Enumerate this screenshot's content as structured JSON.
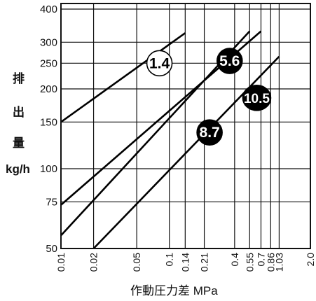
{
  "chart_data": {
    "type": "line",
    "title": "",
    "ylabel_chars": [
      "排",
      "出",
      "量"
    ],
    "yunit": "kg/h",
    "xlabel": "作動圧力差 MPa",
    "x_scale": "log",
    "y_scale": "log",
    "xlim": [
      0.01,
      2.0
    ],
    "ylim": [
      50,
      420
    ],
    "y_ticks": [
      {
        "value": 400,
        "label": "400"
      },
      {
        "value": 300,
        "label": "300"
      },
      {
        "value": 250,
        "label": "250"
      },
      {
        "value": 200,
        "label": "200"
      },
      {
        "value": 150,
        "label": "150"
      },
      {
        "value": 100,
        "label": "100"
      },
      {
        "value": 75,
        "label": "75"
      },
      {
        "value": 50,
        "label": "50"
      }
    ],
    "x_ticks": [
      {
        "value": 0.01,
        "label": "0.01"
      },
      {
        "value": 0.02,
        "label": "0.02"
      },
      {
        "value": 0.05,
        "label": "0.05"
      },
      {
        "value": 0.1,
        "label": "0.1"
      },
      {
        "value": 0.14,
        "label": "0.14"
      },
      {
        "value": 0.21,
        "label": "0.21"
      },
      {
        "value": 0.4,
        "label": "0.4"
      },
      {
        "value": 0.55,
        "label": "0.55"
      },
      {
        "value": 0.7,
        "label": "0.7"
      },
      {
        "value": 0.86,
        "label": "0.86"
      },
      {
        "value": 1.03,
        "label": "1.03"
      },
      {
        "value": 2.0,
        "label": "2.0"
      }
    ],
    "series": [
      {
        "name": "1.4",
        "label_style": "outline",
        "label_at": [
          0.081,
          250
        ],
        "points": [
          [
            0.01,
            150
          ],
          [
            0.14,
            325
          ]
        ]
      },
      {
        "name": "5.6",
        "label_style": "filled",
        "label_at": [
          0.36,
          255
        ],
        "points": [
          [
            0.01,
            56
          ],
          [
            0.55,
            330
          ]
        ]
      },
      {
        "name": "8.7",
        "label_style": "filled",
        "label_at": [
          0.235,
          137
        ],
        "points": [
          [
            0.01,
            73
          ],
          [
            0.7,
            330
          ]
        ]
      },
      {
        "name": "10.5",
        "label_style": "filled",
        "label_at": [
          0.64,
          185
        ],
        "points": [
          [
            0.02,
            50
          ],
          [
            1.03,
            265
          ]
        ]
      }
    ]
  }
}
